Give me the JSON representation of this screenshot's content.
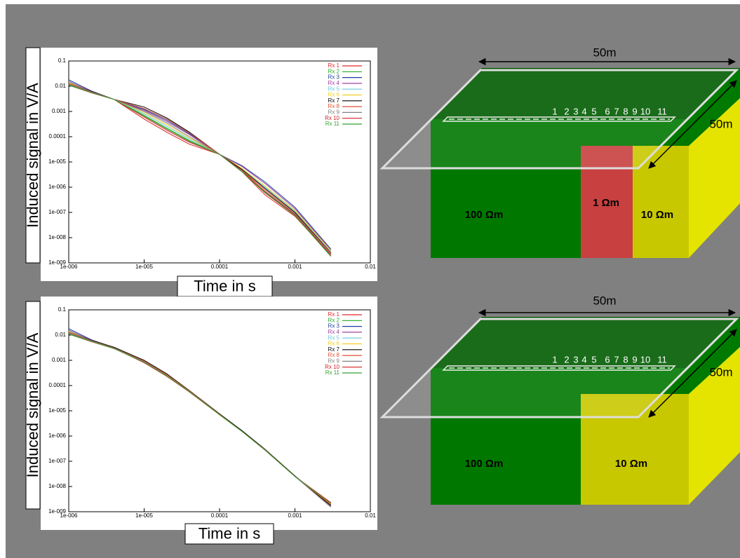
{
  "chart_data": [
    {
      "type": "line",
      "xlabel": "Time in s",
      "ylabel": "Induced signal in V/A",
      "log_x": true,
      "log_y": true,
      "grid": false,
      "legend": "upper right",
      "xlim": [
        1e-06,
        0.01
      ],
      "ylim": [
        1e-09,
        0.1
      ],
      "xticks": [
        {
          "value": 1e-06,
          "label": "1e-006"
        },
        {
          "value": 1e-05,
          "label": "1e-005"
        },
        0.0001,
        0.001,
        0.01
      ],
      "yticks": [
        {
          "value": 1e-09,
          "label": "1e-009"
        },
        {
          "value": 1e-08,
          "label": "1e-008"
        },
        {
          "value": 1e-07,
          "label": "1e-007"
        },
        {
          "value": 1e-06,
          "label": "1e-006"
        },
        {
          "value": 1e-05,
          "label": "1e-005"
        },
        0.0001,
        0.001,
        0.01,
        0.1
      ],
      "x": [
        1e-06,
        2e-06,
        4e-06,
        1e-05,
        2e-05,
        4e-05,
        0.0001,
        0.0002,
        0.0004,
        0.001,
        0.003
      ],
      "series": [
        {
          "name": "Rx 1",
          "color": "#e8262b",
          "values": [
            0.011,
            0.0055,
            0.003,
            0.0006,
            0.00018,
            6e-05,
            2e-05,
            4e-06,
            5e-07,
            7e-08,
            2e-09
          ]
        },
        {
          "name": "Rx 2",
          "color": "#22aa22",
          "values": [
            0.012,
            0.0057,
            0.003,
            0.0007,
            0.00022,
            7e-05,
            2e-05,
            4.5e-06,
            6e-07,
            8e-08,
            2.3e-09
          ]
        },
        {
          "name": "Rx 3",
          "color": "#1f3f9f",
          "values": [
            0.018,
            0.0065,
            0.003,
            0.0012,
            0.00045,
            0.00013,
            2e-05,
            7e-06,
            1.6e-06,
            1.6e-07,
            3.5e-09
          ]
        },
        {
          "name": "Rx 4",
          "color": "#a040a0",
          "values": [
            0.016,
            0.0062,
            0.003,
            0.0011,
            0.0004,
            0.00012,
            2e-05,
            6.5e-06,
            1.4e-06,
            1.4e-07,
            3.2e-09
          ]
        },
        {
          "name": "Rx 5",
          "color": "#6cc8d8",
          "values": [
            0.015,
            0.006,
            0.003,
            0.0008,
            0.00026,
            8e-05,
            2e-05,
            5e-06,
            1e-06,
            1.1e-07,
            2.8e-09
          ]
        },
        {
          "name": "Rx 6",
          "color": "#f0d020",
          "values": [
            0.014,
            0.006,
            0.003,
            0.0009,
            0.0003,
            9e-05,
            2e-05,
            5.5e-06,
            1.1e-06,
            1.2e-07,
            3e-09
          ]
        },
        {
          "name": "Rx 7",
          "color": "#000000",
          "values": [
            0.013,
            0.0062,
            0.003,
            0.0015,
            0.00055,
            0.00015,
            2e-05,
            5e-06,
            9e-07,
            1e-07,
            2.5e-09
          ]
        },
        {
          "name": "Rx 8",
          "color": "#e05030",
          "values": [
            0.013,
            0.006,
            0.003,
            0.0013,
            0.0005,
            0.00014,
            2e-05,
            4.5e-06,
            8e-07,
            9e-08,
            2.4e-09
          ]
        },
        {
          "name": "Rx 9",
          "color": "#808080",
          "values": [
            0.012,
            0.0058,
            0.003,
            0.001,
            0.00035,
            0.0001,
            2e-05,
            4e-06,
            7e-07,
            8.5e-08,
            2.2e-09
          ]
        },
        {
          "name": "Rx 10",
          "color": "#d02020",
          "values": [
            0.011,
            0.0055,
            0.003,
            0.0005,
            0.00015,
            5e-05,
            2e-05,
            4.5e-06,
            6.5e-07,
            8e-08,
            2e-09
          ]
        },
        {
          "name": "Rx 11",
          "color": "#30a030",
          "values": [
            0.011,
            0.0056,
            0.003,
            0.00065,
            0.0002,
            6.5e-05,
            2e-05,
            4e-06,
            6e-07,
            7.5e-08,
            1.8e-09
          ]
        }
      ]
    },
    {
      "type": "line",
      "xlabel": "Time in s",
      "ylabel": "Induced signal in V/A",
      "log_x": true,
      "log_y": true,
      "grid": false,
      "legend": "upper right",
      "xlim": [
        1e-06,
        0.01
      ],
      "ylim": [
        1e-09,
        0.1
      ],
      "xticks": [
        {
          "value": 1e-06,
          "label": "1e-006"
        },
        {
          "value": 1e-05,
          "label": "1e-005"
        },
        0.0001,
        0.001,
        0.01
      ],
      "yticks": [
        {
          "value": 1e-09,
          "label": "1e-009"
        },
        {
          "value": 1e-08,
          "label": "1e-008"
        },
        {
          "value": 1e-07,
          "label": "1e-007"
        },
        {
          "value": 1e-06,
          "label": "1e-006"
        },
        {
          "value": 1e-05,
          "label": "1e-005"
        },
        0.0001,
        0.001,
        0.01,
        0.1
      ],
      "x": [
        1e-06,
        2e-06,
        4e-06,
        1e-05,
        2e-05,
        4e-05,
        0.0001,
        0.0002,
        0.0004,
        0.001,
        0.003
      ],
      "series": [
        {
          "name": "Rx 1",
          "color": "#e8262b",
          "values": [
            0.011,
            0.0055,
            0.003,
            0.0008,
            0.00023,
            5.5e-05,
            7e-06,
            1.5e-06,
            2.8e-07,
            2.5e-08,
            2.2e-09
          ]
        },
        {
          "name": "Rx 2",
          "color": "#22aa22",
          "values": [
            0.012,
            0.0057,
            0.003,
            0.00085,
            0.00024,
            5.7e-05,
            7e-06,
            1.5e-06,
            2.8e-07,
            2.5e-08,
            2e-09
          ]
        },
        {
          "name": "Rx 3",
          "color": "#1f3f9f",
          "values": [
            0.018,
            0.0065,
            0.0032,
            0.00095,
            0.00028,
            6.2e-05,
            7.5e-06,
            1.6e-06,
            3e-07,
            2.6e-08,
            1.8e-09
          ]
        },
        {
          "name": "Rx 4",
          "color": "#a040a0",
          "values": [
            0.016,
            0.0062,
            0.0031,
            0.00093,
            0.00027,
            6e-05,
            7.3e-06,
            1.6e-06,
            2.9e-07,
            2.6e-08,
            1.9e-09
          ]
        },
        {
          "name": "Rx 5",
          "color": "#6cc8d8",
          "values": [
            0.015,
            0.006,
            0.003,
            0.0009,
            0.00026,
            6e-05,
            7.2e-06,
            1.5e-06,
            2.9e-07,
            2.5e-08,
            2e-09
          ]
        },
        {
          "name": "Rx 6",
          "color": "#f0d020",
          "values": [
            0.014,
            0.006,
            0.003,
            0.0009,
            0.00026,
            6e-05,
            7.2e-06,
            1.5e-06,
            2.9e-07,
            2.5e-08,
            2e-09
          ]
        },
        {
          "name": "Rx 7",
          "color": "#000000",
          "values": [
            0.013,
            0.0062,
            0.0033,
            0.001,
            0.00029,
            6.3e-05,
            7.6e-06,
            1.6e-06,
            3e-07,
            2.6e-08,
            1.7e-09
          ]
        },
        {
          "name": "Rx 8",
          "color": "#e05030",
          "values": [
            0.013,
            0.006,
            0.0031,
            0.00094,
            0.00027,
            6.1e-05,
            7.3e-06,
            1.5e-06,
            2.9e-07,
            2.5e-08,
            1.9e-09
          ]
        },
        {
          "name": "Rx 9",
          "color": "#808080",
          "values": [
            0.012,
            0.0058,
            0.003,
            0.00088,
            0.00025,
            5.8e-05,
            7e-06,
            1.5e-06,
            2.8e-07,
            2.5e-08,
            1.5e-09
          ]
        },
        {
          "name": "Rx 10",
          "color": "#d02020",
          "values": [
            0.011,
            0.0055,
            0.0029,
            0.00082,
            0.00024,
            5.6e-05,
            7e-06,
            1.5e-06,
            2.8e-07,
            2.5e-08,
            2.3e-09
          ]
        },
        {
          "name": "Rx 11",
          "color": "#30a030",
          "values": [
            0.011,
            0.0056,
            0.0029,
            0.00084,
            0.00024,
            5.7e-05,
            7e-06,
            1.5e-06,
            2.8e-07,
            2.5e-08,
            2.1e-09
          ]
        }
      ]
    }
  ],
  "diagrams": [
    {
      "width_label": "50m",
      "depth_label": "50m",
      "receivers": [
        "1",
        "2",
        "3",
        "4",
        "5",
        "6",
        "7",
        "8",
        "9",
        "10",
        "11"
      ],
      "zones": [
        "100 Ωm",
        "1 Ωm",
        "10 Ωm"
      ]
    },
    {
      "width_label": "50m",
      "depth_label": "50m",
      "receivers": [
        "1",
        "2",
        "3",
        "4",
        "5",
        "6",
        "7",
        "8",
        "9",
        "10",
        "11"
      ],
      "zones": [
        "100 Ωm",
        "10 Ωm"
      ]
    }
  ]
}
